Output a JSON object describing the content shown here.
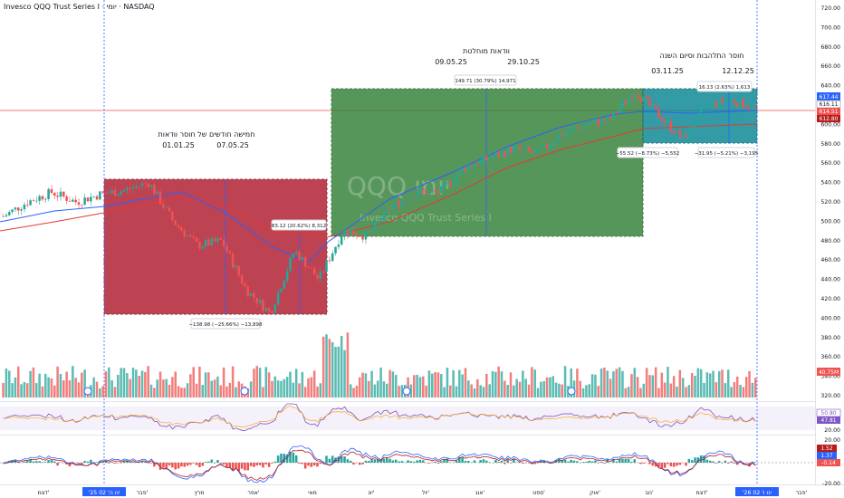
{
  "header": {
    "symbol_line": "Invesco QQQ Trust Series I · יומי · NASDAQ"
  },
  "watermark": {
    "big": "QQQ יומי",
    "small": "Invesco QQQ Trust Series I"
  },
  "colors": {
    "up": "#26a69a",
    "down": "#ef5350",
    "redZone": "#b22234",
    "greenZone": "#2e7d32",
    "tealZone": "#00838f",
    "blueLine": "#2962ff"
  },
  "axes": {
    "price_ticks": [
      "720.00",
      "700.00",
      "680.00",
      "660.00",
      "640.00",
      "620.00",
      "600.00",
      "580.00",
      "560.00",
      "540.00",
      "520.00",
      "500.00",
      "480.00",
      "460.00",
      "440.00",
      "420.00",
      "400.00",
      "380.00",
      "360.00",
      "340.00",
      "320.00"
    ],
    "osc_ticks": [
      "80.00",
      "20.00"
    ],
    "macd_ticks": [
      "20.00",
      "0.00",
      "-20.00"
    ],
    "time_ticks": [
      "דצמ'",
      "'25 ינו ה' 02",
      "פבר'",
      "מרץ",
      "אפר'",
      "מאי",
      "יונ'",
      "יול'",
      "אוג'",
      "ספט'",
      "אוק'",
      "נוב'",
      "דצמ'",
      "'26 ינו ו' 02",
      "פבר'"
    ]
  },
  "price_badges": {
    "price1": "617.44",
    "price2": "616.11",
    "price3": "614.51",
    "price4": "612.80",
    "volume": "40.75M",
    "osc1": "50.80",
    "osc2": "47.81",
    "macd1": "1.52",
    "macd2": "1.37",
    "macd3": "-0.14"
  },
  "annotations": {
    "red_title": "חמישה חודשים של חוסר וודאות",
    "red_dates": {
      "start": "01.01.25",
      "end": "07.05.25"
    },
    "red_drop": "−138.98 (−25.66%) −13,898",
    "red_rebound": "83.12 (20.62%) 8,312",
    "green_title": "וודאות מוחלטת",
    "green_dates": {
      "start": "09.05.25",
      "end": "29.10.25"
    },
    "green_gain": "149.71 (30.79%) 14,971",
    "teal_title": "חוסר התלהבות וסיום השנה",
    "teal_dates": {
      "start": "03.11.25",
      "end": "12.12.25"
    },
    "teal_gain": "16.13 (2.63%) 1,613",
    "teal_drop1": "−55.52 (−8.73%) −5,552",
    "teal_drop2": "−31.95 (−5.21%) −3,195"
  },
  "chart_data": {
    "type": "line",
    "title": "Invesco QQQ Trust Series I · יומי · NASDAQ",
    "y_range": [
      320,
      720
    ],
    "series": [
      {
        "name": "QQQ",
        "x": [
          "2024-11-25",
          "2024-12-10",
          "2024-12-20",
          "2025-01-02",
          "2025-01-20",
          "2025-02-03",
          "2025-02-19",
          "2025-03-03",
          "2025-03-13",
          "2025-03-25",
          "2025-04-04",
          "2025-04-08",
          "2025-04-10",
          "2025-04-21",
          "2025-05-02",
          "2025-05-07",
          "2025-05-13",
          "2025-06-02",
          "2025-06-20",
          "2025-07-15",
          "2025-08-01",
          "2025-08-15",
          "2025-09-01",
          "2025-09-15",
          "2025-10-01",
          "2025-10-15",
          "2025-10-29",
          "2025-11-07",
          "2025-11-20",
          "2025-12-01",
          "2025-12-12",
          "2026-01-02"
        ],
        "y": [
          505,
          520,
          530,
          520,
          528,
          532,
          540,
          500,
          475,
          480,
          430,
          405,
          470,
          440,
          490,
          485,
          515,
          530,
          530,
          555,
          565,
          575,
          570,
          590,
          600,
          605,
          635,
          610,
          585,
          620,
          625,
          617
        ]
      }
    ],
    "volume_label": "40.75M",
    "regions": [
      {
        "label": "חמישה חודשים של חוסר וודאות",
        "start": "01.01.25",
        "end": "07.05.25",
        "change": "−138.98 (−25.66%) −13,898"
      },
      {
        "label": "וודאות מוחלטת",
        "start": "09.05.25",
        "end": "29.10.25",
        "change": "149.71 (30.79%) 14,971"
      },
      {
        "label": "חוסר התלהבות וסיום השנה",
        "start": "03.11.25",
        "end": "12.12.25",
        "change": "16.13 (2.63%) 1,613"
      }
    ]
  }
}
